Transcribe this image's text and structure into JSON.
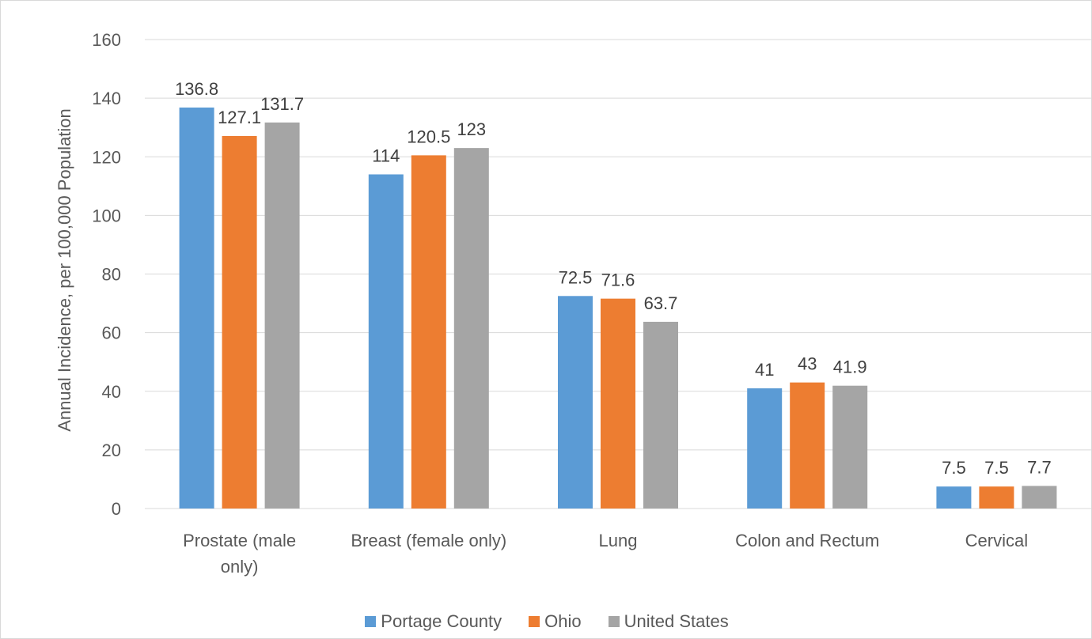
{
  "chart_data": {
    "type": "bar",
    "title": "",
    "ylabel": "Annual Incidence, per 100,000 Population",
    "xlabel": "",
    "ylim": [
      0,
      160
    ],
    "yticks": [
      0,
      20,
      40,
      60,
      80,
      100,
      120,
      140,
      160
    ],
    "grid": true,
    "legend_position": "bottom",
    "categories": [
      [
        "Prostate (male",
        "only)"
      ],
      [
        "Breast (female only)"
      ],
      [
        "Lung"
      ],
      [
        "Colon and Rectum"
      ],
      [
        "Cervical"
      ]
    ],
    "series": [
      {
        "name": "Portage County",
        "color": "#5B9BD5",
        "values": [
          136.8,
          114,
          72.5,
          41,
          7.5
        ]
      },
      {
        "name": "Ohio",
        "color": "#ED7D31",
        "values": [
          127.1,
          120.5,
          71.6,
          43,
          7.5
        ]
      },
      {
        "name": "United States",
        "color": "#A5A5A5",
        "values": [
          131.7,
          123,
          63.7,
          41.9,
          7.7
        ]
      }
    ]
  }
}
